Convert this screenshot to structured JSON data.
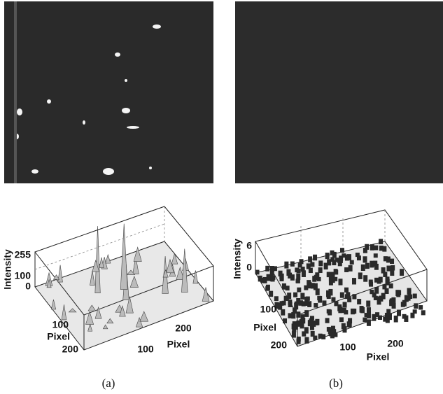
{
  "panels": [
    {
      "caption": "(a)",
      "plot": {
        "z_label": "Intensity",
        "z_ticks": [
          255,
          100,
          0
        ],
        "y_label": "Pixel",
        "y_ticks": [
          100,
          200
        ],
        "x_label": "Pixel",
        "x_ticks": [
          100,
          200
        ]
      }
    },
    {
      "caption": "(b)",
      "plot": {
        "z_label": "Intensity",
        "z_ticks": [
          6,
          0
        ],
        "y_label": "Pixel",
        "y_ticks": [
          100,
          200
        ],
        "x_label": "Pixel",
        "x_ticks": [
          100,
          200
        ]
      }
    }
  ]
}
